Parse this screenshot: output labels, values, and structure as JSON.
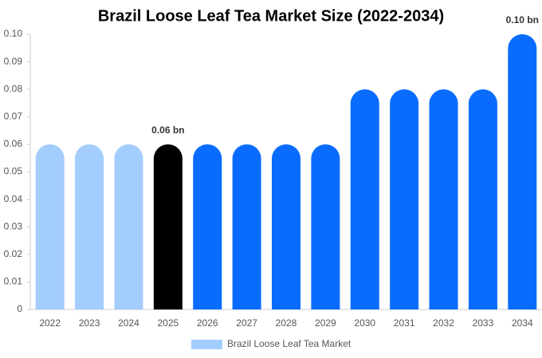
{
  "chart_data": {
    "type": "bar",
    "title": "Brazil Loose Leaf Tea Market Size (2022-2034)",
    "categories": [
      "2022",
      "2023",
      "2024",
      "2025",
      "2026",
      "2027",
      "2028",
      "2029",
      "2030",
      "2031",
      "2032",
      "2033",
      "2034"
    ],
    "series": [
      {
        "name": "Brazil Loose Leaf Tea Market",
        "color": "#a3cdfd",
        "colors": [
          "#a3cdfd",
          "#a3cdfd",
          "#a3cdfd",
          "#000000",
          "#0a6cff",
          "#0a6cff",
          "#0a6cff",
          "#0a6cff",
          "#0a6cff",
          "#0a6cff",
          "#0a6cff",
          "#0a6cff",
          "#0a6cff"
        ],
        "values": [
          0.06,
          0.06,
          0.06,
          0.06,
          0.06,
          0.06,
          0.06,
          0.06,
          0.08,
          0.08,
          0.08,
          0.08,
          0.1
        ],
        "value_labels": [
          null,
          null,
          null,
          "0.06 bn",
          null,
          null,
          null,
          null,
          null,
          null,
          null,
          null,
          "0.10 bn"
        ]
      }
    ],
    "ylim": [
      0,
      0.1
    ],
    "yticks": [
      0,
      0.01,
      0.02,
      0.03,
      0.04,
      0.05,
      0.06,
      0.07,
      0.08,
      0.09,
      {
        "value": 0.1,
        "label": "0.10"
      }
    ],
    "grid": false,
    "legend": "bottom"
  }
}
